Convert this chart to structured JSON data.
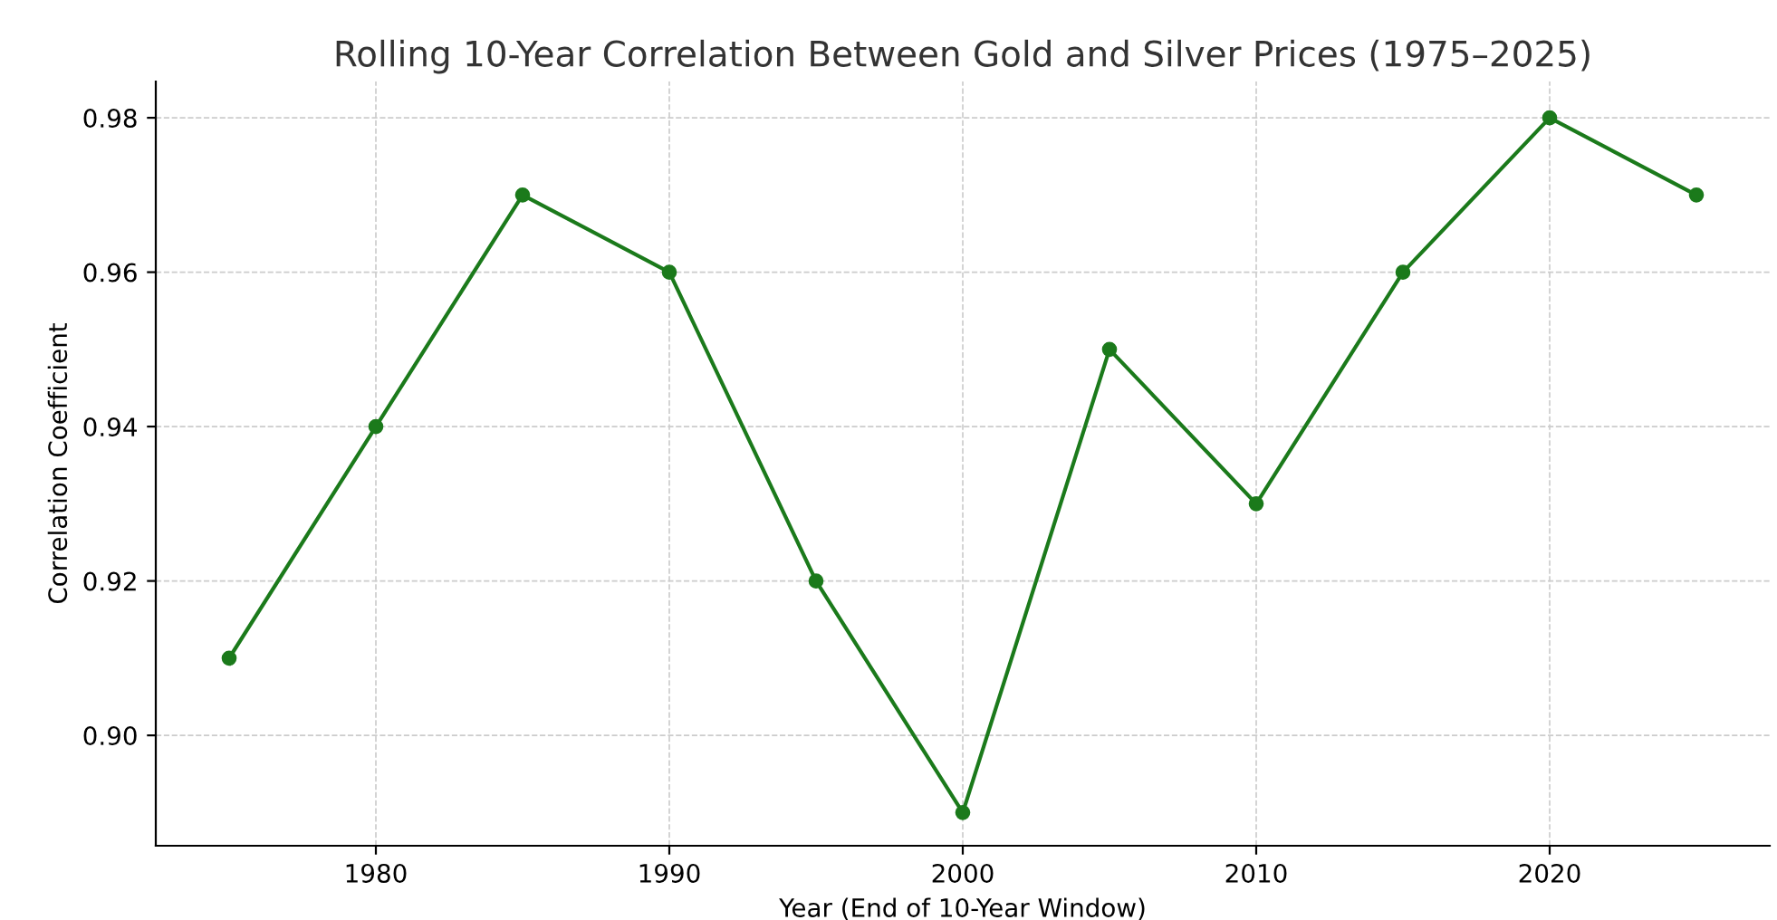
{
  "chart_data": {
    "type": "line",
    "title": "Rolling 10-Year Correlation Between Gold and Silver Prices (1975–2025)",
    "xlabel": "Year (End of 10-Year Window)",
    "ylabel": "Correlation Coefficient",
    "x": [
      1975,
      1980,
      1985,
      1990,
      1995,
      2000,
      2005,
      2010,
      2015,
      2020,
      2025
    ],
    "series": [
      {
        "color": "#1b7a1b",
        "values": [
          0.91,
          0.94,
          0.97,
          0.96,
          0.92,
          0.89,
          0.95,
          0.93,
          0.96,
          0.98,
          0.97
        ]
      }
    ],
    "xlim": [
      1972.5,
      2027.5
    ],
    "xticks": [
      1980,
      1990,
      2000,
      2010,
      2020
    ],
    "ylim": [
      0.8857,
      0.9847
    ],
    "yticks": [
      {
        "value": 0.9,
        "label": "0.90"
      },
      {
        "value": 0.92,
        "label": "0.92"
      },
      {
        "value": 0.94,
        "label": "0.94"
      },
      {
        "value": 0.96,
        "label": "0.96"
      },
      {
        "value": 0.98,
        "label": "0.98"
      }
    ],
    "grid": true,
    "marker": "circle",
    "line_style": "solid",
    "legend": false
  }
}
